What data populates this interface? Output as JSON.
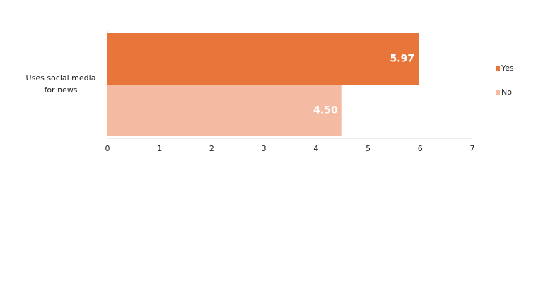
{
  "chart_data": {
    "type": "bar",
    "orientation": "horizontal",
    "categories": [
      "Uses social media for news"
    ],
    "series": [
      {
        "name": "Yes",
        "color": "#e8763a",
        "values": [
          5.97
        ],
        "value_labels": [
          "5.97"
        ]
      },
      {
        "name": "No",
        "color": "#f4bba2",
        "values": [
          4.5
        ],
        "value_labels": [
          "4.50"
        ]
      }
    ],
    "xlim": [
      0,
      7
    ],
    "xticks": [
      0,
      1,
      2,
      3,
      4,
      5,
      6,
      7
    ],
    "legend": "right"
  }
}
